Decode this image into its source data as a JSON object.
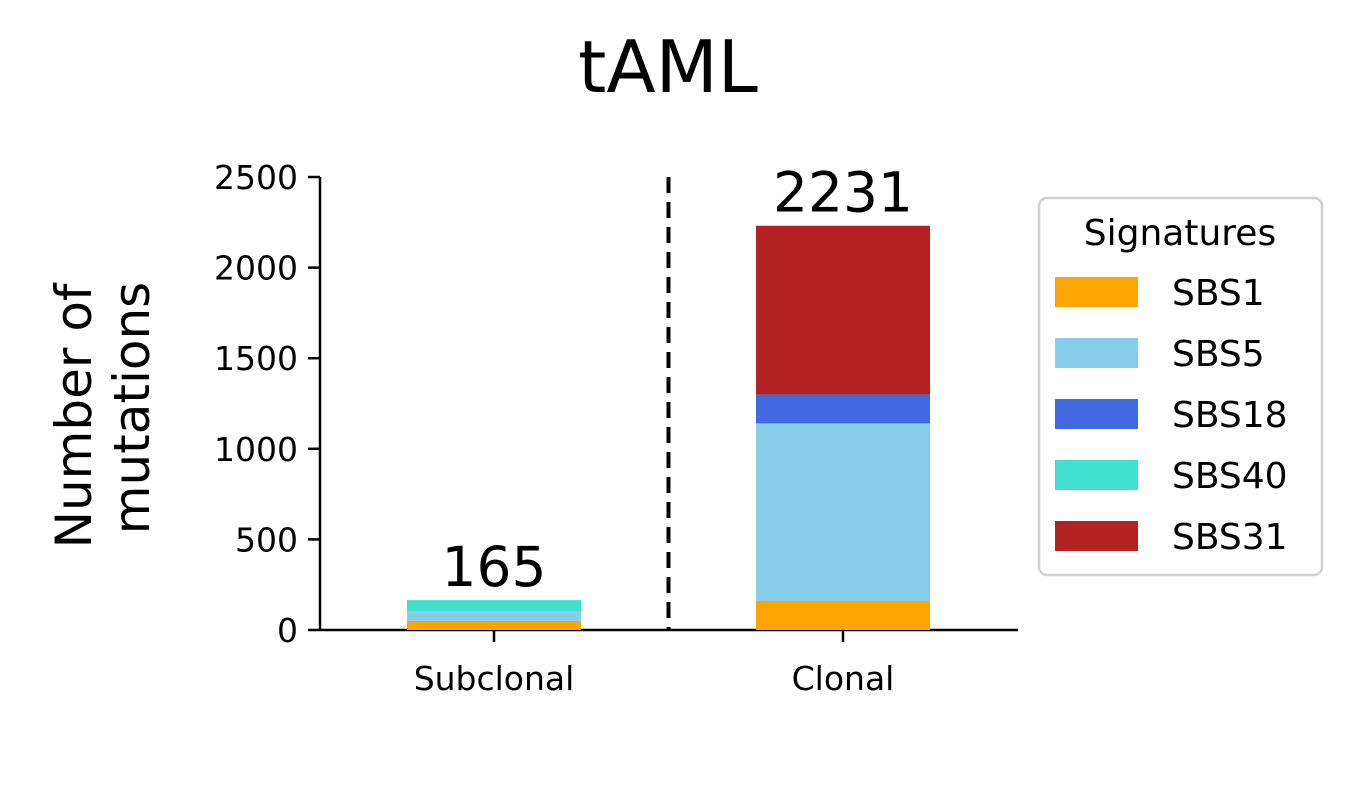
{
  "chart_data": {
    "type": "bar",
    "stacked": true,
    "title": "tAML",
    "xlabel": "",
    "ylabel": "Number of\nmutations",
    "ylim": [
      0,
      2500
    ],
    "yticks": [
      0,
      500,
      1000,
      1500,
      2000,
      2500
    ],
    "categories": [
      "Subclonal",
      "Clonal"
    ],
    "totals": [
      "165",
      "2231"
    ],
    "series": [
      {
        "name": "SBS1",
        "color": "#FFA500",
        "values": [
          50,
          160
        ]
      },
      {
        "name": "SBS5",
        "color": "#87CEEB",
        "values": [
          55,
          980
        ]
      },
      {
        "name": "SBS18",
        "color": "#4169E1",
        "values": [
          0,
          160
        ]
      },
      {
        "name": "SBS40",
        "color": "#40E0D0",
        "values": [
          60,
          0
        ]
      },
      {
        "name": "SBS31",
        "color": "#B22222",
        "values": [
          0,
          931
        ]
      }
    ],
    "legend": {
      "title": "Signatures",
      "position": "right"
    },
    "divider": {
      "style": "dashed",
      "position": "between-categories"
    }
  }
}
